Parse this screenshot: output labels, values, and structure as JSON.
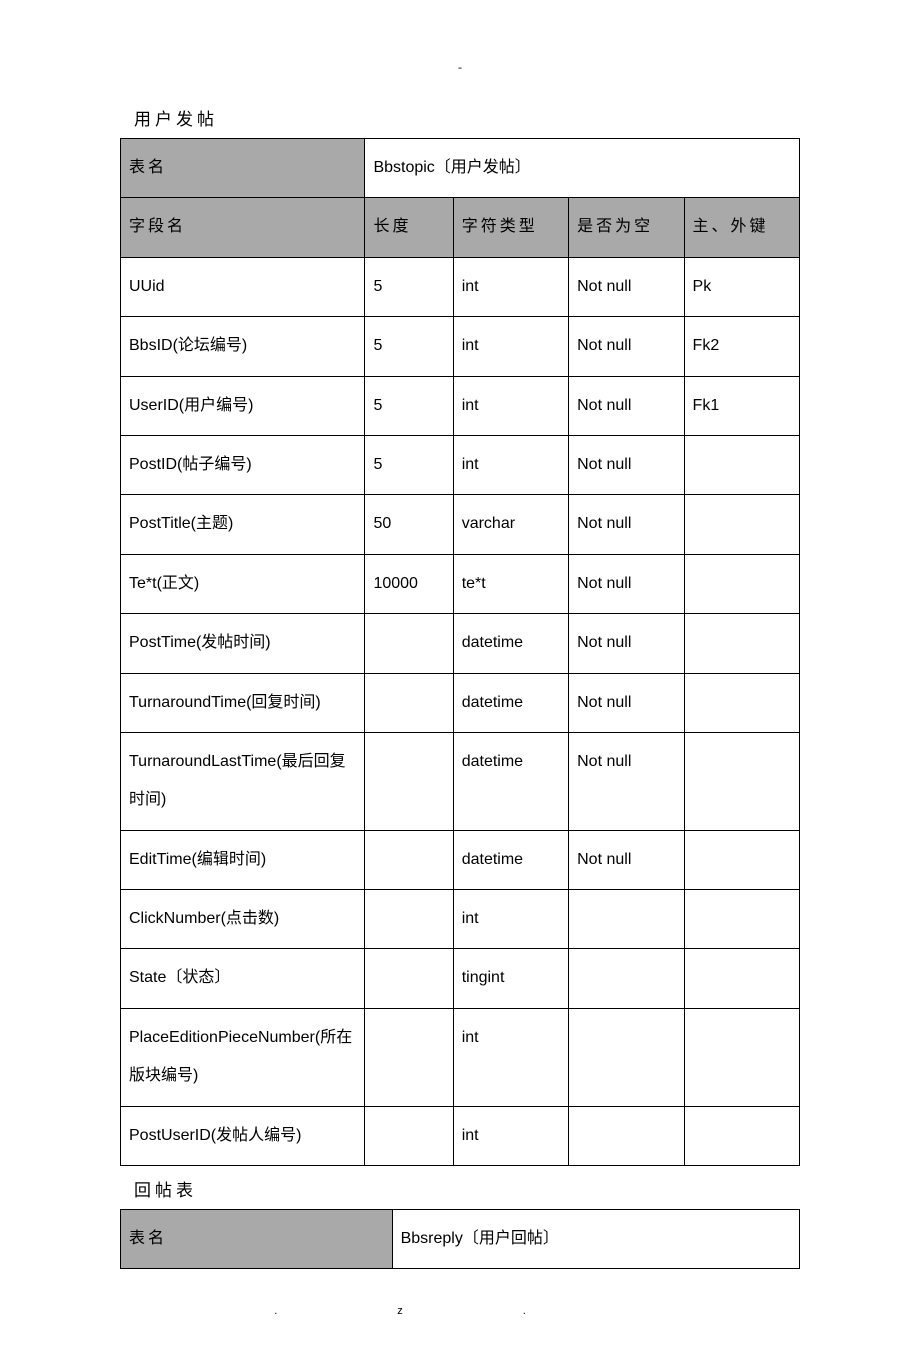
{
  "top_dash": "-",
  "footer": ".z.",
  "section1": {
    "title": "用户发帖",
    "table_label": "表名",
    "table_value": "Bbstopic〔用户发帖〕",
    "headers": {
      "field": "字段名",
      "len": "长度",
      "type": "字符类型",
      "null": "是否为空",
      "key": "主、外键"
    },
    "rows": [
      {
        "field": "UUid",
        "len": "5",
        "type": "int",
        "null": "Not null",
        "key": "Pk"
      },
      {
        "field": "BbsID(论坛编号)",
        "len": "5",
        "type": "int",
        "null": "Not null",
        "key": "Fk2"
      },
      {
        "field": "UserID(用户编号)",
        "len": "5",
        "type": "int",
        "null": "Not null",
        "key": "Fk1"
      },
      {
        "field": "PostID(帖子编号)",
        "len": "5",
        "type": "int",
        "null": "Not null",
        "key": ""
      },
      {
        "field": "PostTitle(主题)",
        "len": "50",
        "type": "varchar",
        "null": "Not null",
        "key": ""
      },
      {
        "field": "Te*t(正文)",
        "len": "10000",
        "type": "te*t",
        "null": "Not null",
        "key": ""
      },
      {
        "field": "PostTime(发帖时间)",
        "len": "",
        "type": "datetime",
        "null": "Not null",
        "key": ""
      },
      {
        "field": "TurnaroundTime(回复时间)",
        "len": "",
        "type": "datetime",
        "null": "Not null",
        "key": ""
      },
      {
        "field": "TurnaroundLastTime(最后回复时间)",
        "len": "",
        "type": "datetime",
        "null": "Not null",
        "key": ""
      },
      {
        "field": "EditTime(编辑时间)",
        "len": "",
        "type": "datetime",
        "null": "Not null",
        "key": ""
      },
      {
        "field": "ClickNumber(点击数)",
        "len": "",
        "type": "int",
        "null": "",
        "key": ""
      },
      {
        "field": "State〔状态〕",
        "len": "",
        "type": "tingint",
        "null": "",
        "key": ""
      },
      {
        "field": "PlaceEditionPieceNumber(所在版块编号)",
        "len": "",
        "type": "int",
        "null": "",
        "key": ""
      },
      {
        "field": "PostUserID(发帖人编号)",
        "len": "",
        "type": "int",
        "null": "",
        "key": ""
      }
    ]
  },
  "section2": {
    "title": "回帖表",
    "table_label": "表名",
    "table_value": "Bbsreply〔用户回帖〕"
  }
}
